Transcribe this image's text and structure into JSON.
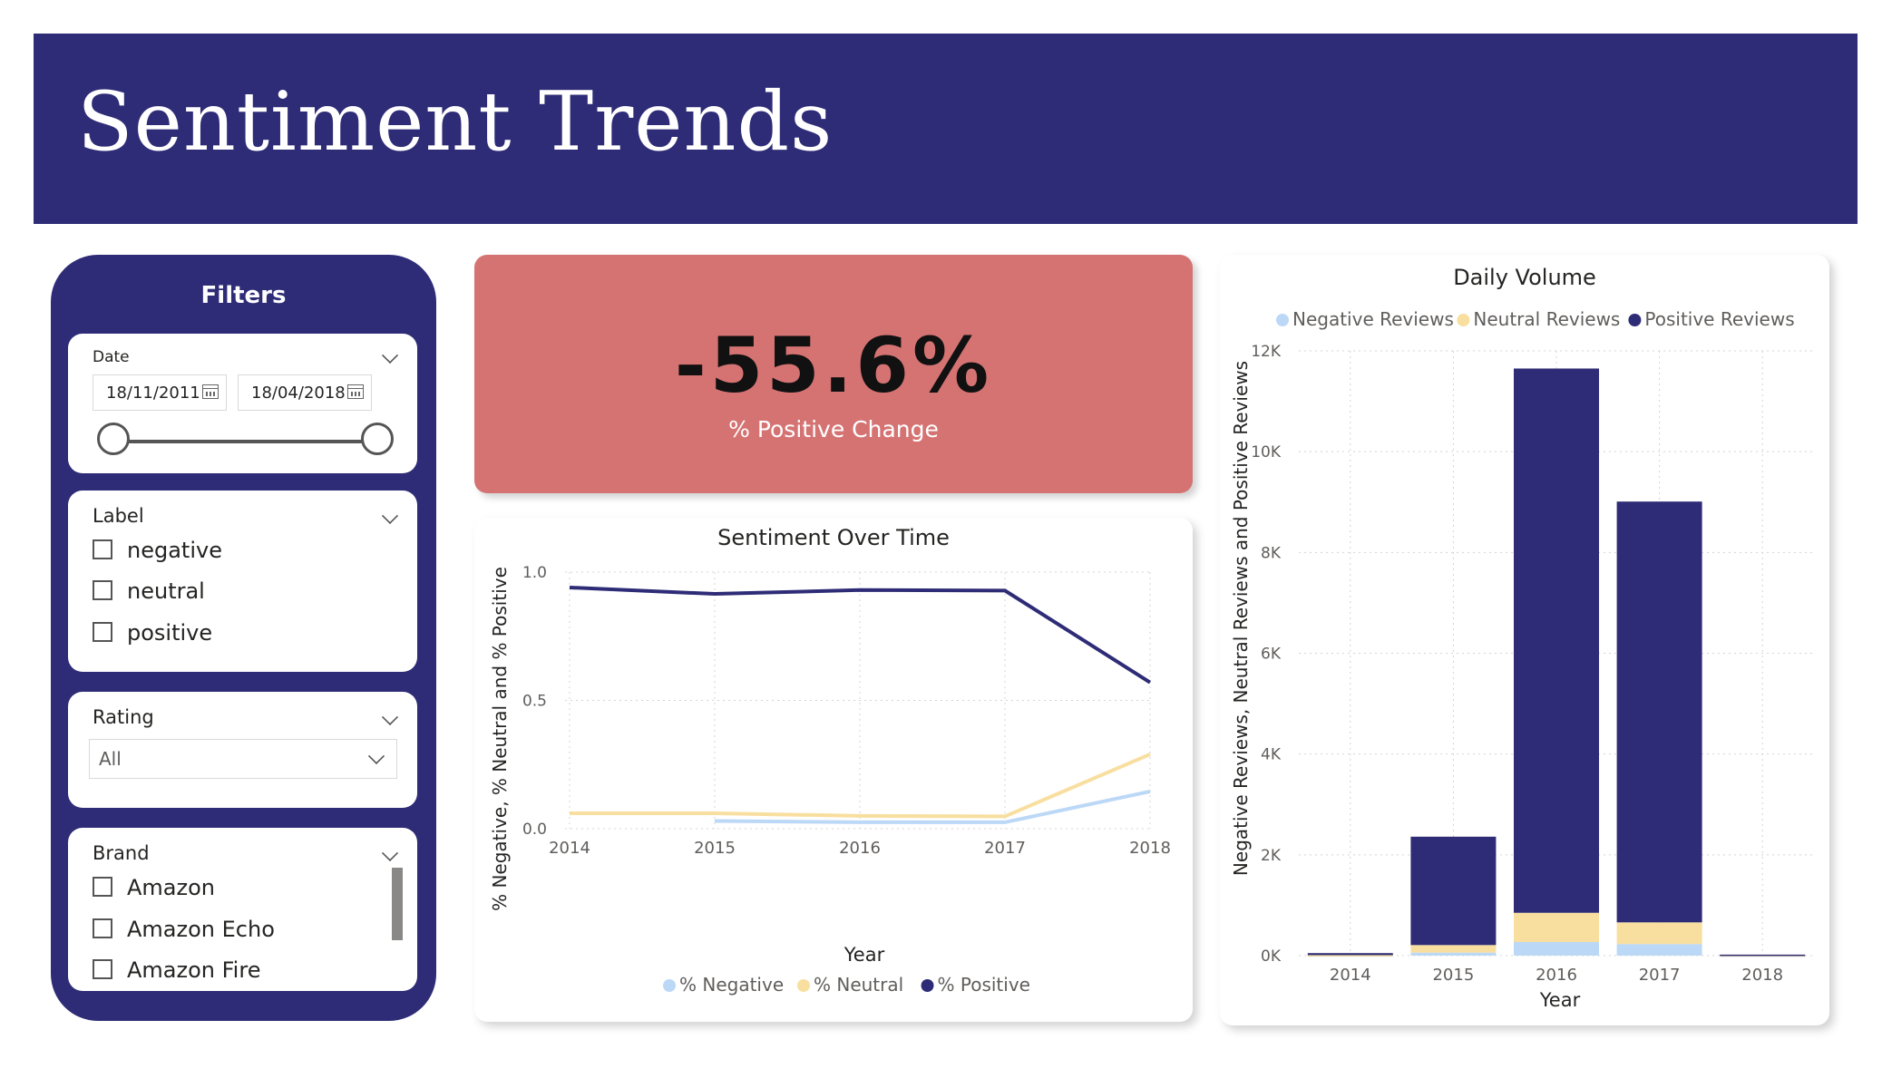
{
  "header": {
    "title": "Sentiment Trends"
  },
  "filters": {
    "title": "Filters",
    "date": {
      "label": "Date",
      "start": "18/11/2011",
      "end": "18/04/2018"
    },
    "label_filter": {
      "label": "Label",
      "options": [
        "negative",
        "neutral",
        "positive"
      ]
    },
    "rating": {
      "label": "Rating",
      "selected": "All"
    },
    "brand": {
      "label": "Brand",
      "options": [
        "Amazon",
        "Amazon Echo",
        "Amazon Fire"
      ]
    }
  },
  "kpi": {
    "value": "-55.6%",
    "label": "% Positive Change",
    "color": "#d57373"
  },
  "colors": {
    "negative": "#bcd8f7",
    "neutral": "#f8df9f",
    "positive": "#2e2c76"
  },
  "chart_data": [
    {
      "type": "line",
      "title": "Sentiment Over Time",
      "xlabel": "Year",
      "ylabel": "% Negative, % Neutral and % Positive",
      "x": [
        2014,
        2015,
        2016,
        2017,
        2018
      ],
      "ylim": [
        0,
        1
      ],
      "yticks": [
        "0.0",
        "0.5",
        "1.0"
      ],
      "grid": true,
      "legend": "bottom",
      "series": [
        {
          "name": "% Negative",
          "color": "#bcd8f7",
          "values": [
            null,
            0.03,
            0.025,
            0.025,
            0.145
          ]
        },
        {
          "name": "% Neutral",
          "color": "#f8df9f",
          "values": [
            0.06,
            0.06,
            0.05,
            0.048,
            0.29
          ]
        },
        {
          "name": "% Positive",
          "color": "#2e2c76",
          "values": [
            0.94,
            0.915,
            0.93,
            0.928,
            0.57
          ]
        }
      ]
    },
    {
      "type": "bar",
      "stacked": true,
      "title": "Daily Volume",
      "xlabel": "Year",
      "ylabel": "Negative Reviews, Neutral Reviews and Positive Reviews",
      "categories": [
        "2014",
        "2015",
        "2016",
        "2017",
        "2018"
      ],
      "ylim": [
        0,
        12000
      ],
      "yticks": [
        "0K",
        "2K",
        "4K",
        "6K",
        "8K",
        "10K",
        "12K"
      ],
      "grid": true,
      "legend": "top",
      "series": [
        {
          "name": "Negative Reviews",
          "color": "#bcd8f7",
          "values": [
            5,
            60,
            270,
            230,
            5
          ]
        },
        {
          "name": "Neutral Reviews",
          "color": "#f8df9f",
          "values": [
            5,
            150,
            580,
            430,
            5
          ]
        },
        {
          "name": "Positive Reviews",
          "color": "#2e2c76",
          "values": [
            40,
            2150,
            10800,
            8350,
            10
          ]
        }
      ]
    }
  ]
}
